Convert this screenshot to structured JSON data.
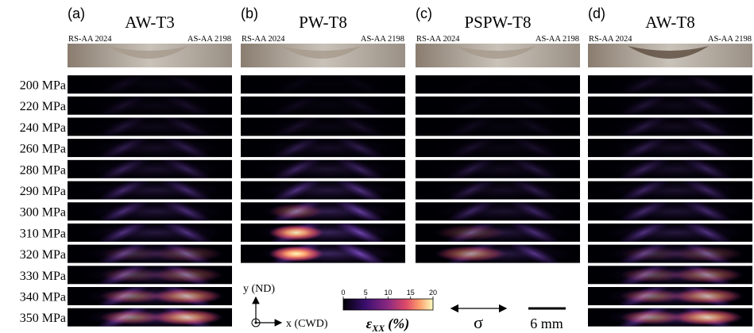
{
  "panels": [
    {
      "label": "(a)",
      "title": "AW-T3",
      "left_material": "RS-AA 2024",
      "right_material": "AS-AA 2198"
    },
    {
      "label": "(b)",
      "title": "PW-T8",
      "left_material": "RS-AA 2024",
      "right_material": "AS-AA 2198"
    },
    {
      "label": "(c)",
      "title": "PSPW-T8",
      "left_material": "RS-AA 2024",
      "right_material": "AS-AA 2198"
    },
    {
      "label": "(d)",
      "title": "AW-T8",
      "left_material": "RS-AA 2024",
      "right_material": "AS-AA 2198"
    }
  ],
  "stress_levels": [
    "200 MPa",
    "220 MPa",
    "240 MPa",
    "260 MPa",
    "280 MPa",
    "290 MPa",
    "300 MPa",
    "310 MPa",
    "320 MPa",
    "330 MPa",
    "340 MPa",
    "350 MPa"
  ],
  "colorbar": {
    "ticks": [
      0,
      5,
      10,
      15,
      20
    ],
    "label_symbol": "ε",
    "label_subscript": "XX",
    "label_unit": "(%)"
  },
  "coordinates": {
    "y_axis": "y (ND)",
    "x_axis": "x (CWD)"
  },
  "load_symbol": "σ",
  "scale_bar": "6 mm"
}
